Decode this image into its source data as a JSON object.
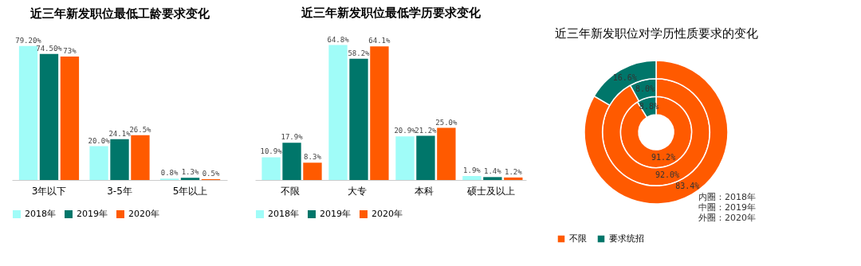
{
  "chart_data": [
    {
      "type": "bar",
      "title": "近三年新发职位最低工龄要求变化",
      "categories": [
        "3年以下",
        "3-5年",
        "5年以上"
      ],
      "legend": "bottom",
      "series": [
        {
          "name": "2018年",
          "color": "#a0fcf8",
          "values": [
            79.2,
            20.0,
            0.8
          ],
          "value_labels": [
            "79.20%",
            "20.0%",
            "0.8%"
          ]
        },
        {
          "name": "2019年",
          "color": "#00766a",
          "values": [
            74.5,
            24.1,
            1.3
          ],
          "value_labels": [
            "74.50%",
            "24.1%",
            "1.3%"
          ]
        },
        {
          "name": "2020年",
          "color": "#ff5a00",
          "values": [
            73,
            26.5,
            0.5
          ],
          "value_labels": [
            "73%",
            "26.5%",
            "0.5%"
          ]
        }
      ]
    },
    {
      "type": "bar",
      "title": "近三年新发职位最低学历要求变化",
      "categories": [
        "不限",
        "大专",
        "本科",
        "硕士及以上"
      ],
      "legend": "bottom",
      "series": [
        {
          "name": "2018年",
          "color": "#a0fcf8",
          "values": [
            10.9,
            64.8,
            20.9,
            1.9
          ],
          "value_labels": [
            "10.9%",
            "64.8%",
            "20.9%",
            "1.9%"
          ]
        },
        {
          "name": "2019年",
          "color": "#00766a",
          "values": [
            17.9,
            58.2,
            21.2,
            1.4
          ],
          "value_labels": [
            "17.9%",
            "58.2%",
            "21.2%",
            "1.4%"
          ]
        },
        {
          "name": "2020年",
          "color": "#ff5a00",
          "values": [
            8.3,
            64.1,
            25.0,
            1.2
          ],
          "value_labels": [
            "8.3%",
            "64.1%",
            "25.0%",
            "1.2%"
          ]
        }
      ]
    },
    {
      "type": "donut",
      "title": "近三年新发职位对学历性质要求的变化",
      "categories": [
        "不限",
        "要求统招"
      ],
      "colors": [
        "#ff5a00",
        "#00766a"
      ],
      "legend": "bottom",
      "series": [
        {
          "values": [
            91.2,
            8.8
          ],
          "value_labels": [
            "91.2%",
            "8.8%"
          ]
        },
        {
          "values": [
            92.0,
            8.0
          ],
          "value_labels": [
            "92.0%",
            "8.0%"
          ]
        },
        {
          "values": [
            83.4,
            16.6
          ],
          "value_labels": [
            "83.4%",
            "16.6%"
          ]
        }
      ],
      "annotations": [
        "内圈：2018年",
        "中圈：2019年",
        "外圈：2020年"
      ]
    }
  ]
}
